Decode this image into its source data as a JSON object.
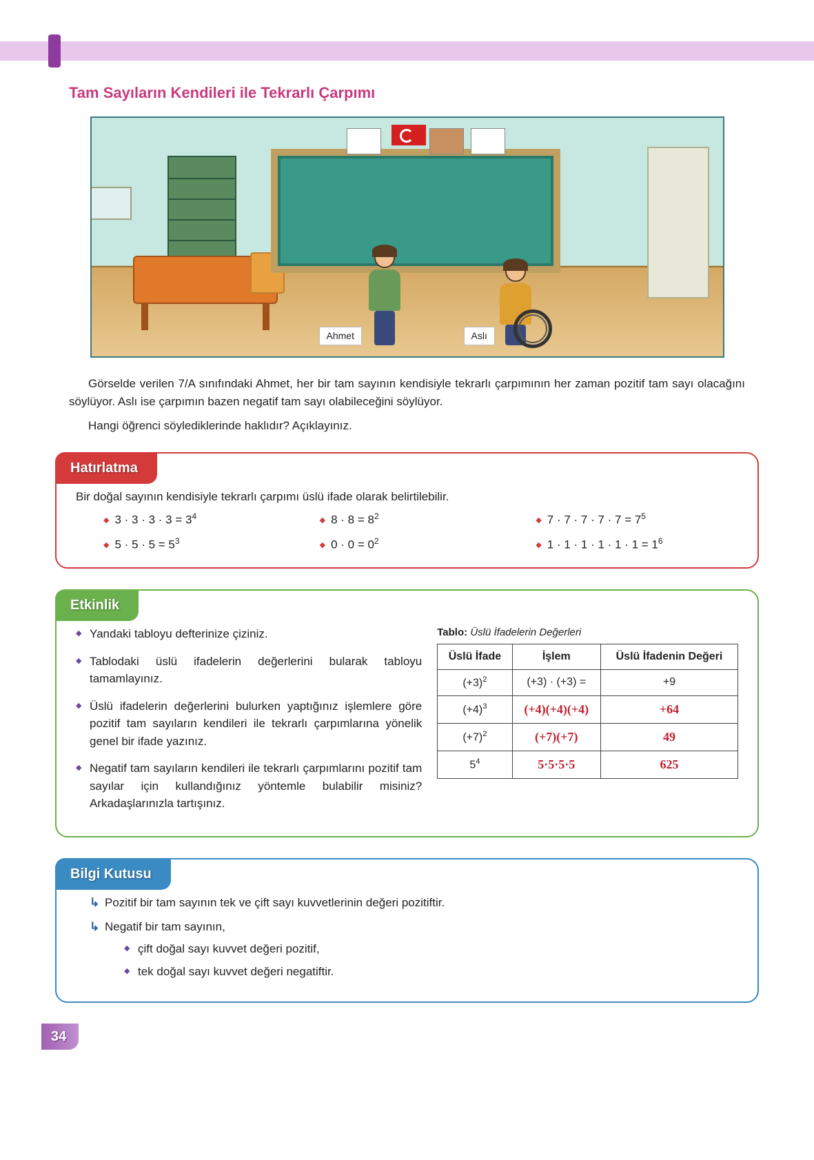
{
  "page_number": "34",
  "title": "Tam Sayıların Kendileri ile Tekrarlı Çarpımı",
  "illustration": {
    "student1_name": "Ahmet",
    "student2_name": "Aslı"
  },
  "intro_paragraph": "Görselde verilen 7/A sınıfındaki Ahmet, her bir tam sayının kendisiyle tekrarlı çarpımının her zaman pozitif tam sayı olacağını söylüyor. Aslı ise çarpımın bazen negatif tam sayı olabileceğini söylüyor.",
  "intro_question": "Hangi öğrenci söylediklerinde haklıdır? Açıklayınız.",
  "hatirlatma": {
    "tab": "Hatırlatma",
    "intro": "Bir doğal sayının kendisiyle tekrarlı çarpımı üslü ifade olarak belirtilebilir.",
    "examples": [
      {
        "base": "3 · 3 · 3 · 3 = 3",
        "exp": "4"
      },
      {
        "base": "8 · 8 = 8",
        "exp": "2"
      },
      {
        "base": "7 · 7 · 7 · 7 · 7 = 7",
        "exp": "5"
      },
      {
        "base": "5 · 5 · 5 = 5",
        "exp": "3"
      },
      {
        "base": "0 · 0 = 0",
        "exp": "2"
      },
      {
        "base": "1 · 1 · 1 · 1 · 1 · 1 = 1",
        "exp": "6"
      }
    ]
  },
  "etkinlik": {
    "tab": "Etkinlik",
    "bullets": [
      "Yandaki tabloyu defterinize çiziniz.",
      "Tablodaki üslü ifadelerin değerlerini bularak tabloyu tamamlayınız.",
      "Üslü ifadelerin değerlerini bulurken yaptığınız işlemlere göre pozitif tam sayıların kendileri ile tekrarlı çarpımlarına yönelik genel bir ifade yazınız.",
      "Negatif tam sayıların kendileri ile tekrarlı çarpımlarını pozitif tam sayılar için kullandığınız yöntemle bulabilir misiniz? Arkadaşlarınızla tartışınız."
    ],
    "table_title_bold": "Tablo:",
    "table_title_italic": "Üslü İfadelerin Değerleri",
    "headers": [
      "Üslü İfade",
      "İşlem",
      "Üslü İfadenin Değeri"
    ],
    "rows": [
      {
        "expr_base": "(+3)",
        "expr_exp": "2",
        "op": "(+3) · (+3)  =",
        "val": "+9",
        "handwritten": false
      },
      {
        "expr_base": "(+4)",
        "expr_exp": "3",
        "op": "(+4)(+4)(+4)",
        "val": "+64",
        "handwritten": true
      },
      {
        "expr_base": "(+7)",
        "expr_exp": "2",
        "op": "(+7)(+7)",
        "val": "49",
        "handwritten": true
      },
      {
        "expr_base": "5",
        "expr_exp": "4",
        "op": "5·5·5·5",
        "val": "625",
        "handwritten": true
      }
    ]
  },
  "bilgi": {
    "tab": "Bilgi Kutusu",
    "items": [
      {
        "text": "Pozitif bir tam sayının tek ve çift sayı kuvvetlerinin değeri pozitiftir."
      },
      {
        "text": "Negatif bir tam sayının,",
        "sub": [
          "çift doğal sayı kuvvet değeri pozitif,",
          "tek doğal sayı kuvvet değeri negatiftir."
        ]
      }
    ]
  }
}
